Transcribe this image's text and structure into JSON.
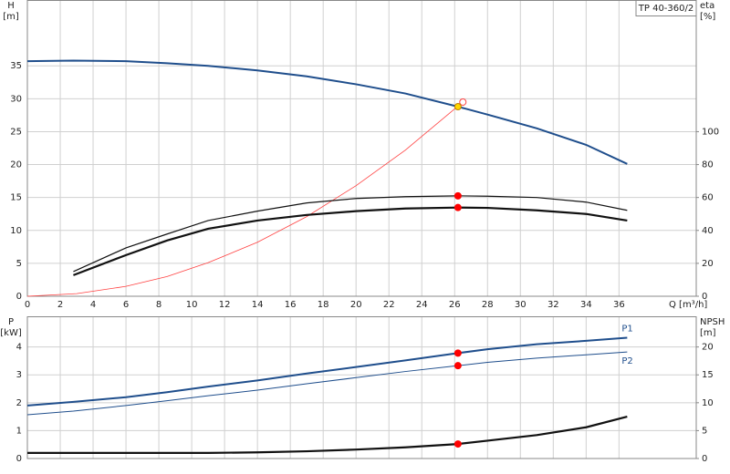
{
  "chart_data": [
    {
      "type": "line",
      "title": "TP 40-360/2",
      "ylabel": "H",
      "ylabel_unit": "[m]",
      "y2label": "eta",
      "y2label_unit": "[%]",
      "xlabel": "Q [m³/h]",
      "xlim": [
        0,
        40.7
      ],
      "xticks": [
        0,
        2,
        4,
        6,
        8,
        10,
        12,
        14,
        16,
        18,
        20,
        22,
        24,
        26,
        28,
        30,
        32,
        34,
        36
      ],
      "show_xtick_labels": true,
      "ylim": [
        0,
        45
      ],
      "yticks": [
        0,
        5,
        10,
        15,
        20,
        25,
        30,
        35
      ],
      "y2lim": [
        0,
        180
      ],
      "y2ticks": [
        0,
        20,
        40,
        60,
        80,
        100
      ],
      "grid": true,
      "series": [
        {
          "color": "#1f4e8c",
          "width": 2,
          "x": [
            0,
            2.8,
            6,
            8.5,
            11,
            14,
            17,
            20,
            23,
            26.2,
            28,
            31,
            34,
            36.5
          ],
          "values": [
            35.7,
            35.8,
            35.7,
            35.4,
            35,
            34.3,
            33.4,
            32.2,
            30.8,
            28.8,
            27.6,
            25.5,
            23,
            20.1
          ]
        },
        {
          "color": "#ff4040",
          "width": 0.8,
          "x": [
            0,
            3,
            6,
            8.5,
            11,
            14,
            17,
            20,
            23,
            26.5
          ],
          "values": [
            0,
            0.4,
            1.5,
            3,
            5.1,
            8.2,
            12.1,
            16.8,
            22.2,
            29.5
          ]
        },
        {
          "color": "#111111",
          "width": 1.2,
          "axis": "y2",
          "x": [
            2.8,
            6,
            8.5,
            11,
            14,
            17,
            20,
            23,
            26.2,
            28,
            31,
            34,
            36.5
          ],
          "values": [
            15,
            29.4,
            37.8,
            46,
            51.7,
            56.7,
            59.4,
            60.5,
            61,
            60.8,
            60,
            57.2,
            52.2
          ]
        },
        {
          "color": "#111111",
          "width": 2.2,
          "axis": "y2",
          "x": [
            2.8,
            6,
            8.5,
            11,
            14,
            17,
            20,
            23,
            26.2,
            28,
            31,
            34,
            36.5
          ],
          "values": [
            12.8,
            25,
            33.9,
            41,
            46,
            49.4,
            51.7,
            53.3,
            53.9,
            53.7,
            52.2,
            50,
            46
          ]
        }
      ],
      "markers": [
        {
          "x": 26.5,
          "y": 29.5,
          "color": "#ff4040",
          "hollow": true
        },
        {
          "x": 26.2,
          "y": 28.8,
          "color": "#ffd700"
        },
        {
          "x": 26.2,
          "y": 61,
          "axis": "y2",
          "color": "#ff0000"
        },
        {
          "x": 26.2,
          "y": 53.9,
          "axis": "y2",
          "color": "#ff0000"
        }
      ]
    },
    {
      "type": "line",
      "ylabel": "P",
      "ylabel_unit": "[kW]",
      "y2label": "NPSH",
      "y2label_unit": "[m]",
      "xlim": [
        0,
        40.7
      ],
      "xticks": [
        0,
        2,
        4,
        6,
        8,
        10,
        12,
        14,
        16,
        18,
        20,
        22,
        24,
        26,
        28,
        30,
        32,
        34,
        36
      ],
      "show_xtick_labels": false,
      "ylim": [
        0,
        5.1
      ],
      "yticks": [
        0,
        1,
        2,
        3,
        4
      ],
      "y2lim": [
        0,
        25.5
      ],
      "y2ticks": [
        0,
        5,
        10,
        15,
        20
      ],
      "grid": true,
      "series": [
        {
          "name": "P1",
          "color": "#1f4e8c",
          "width": 2,
          "x": [
            0,
            2.8,
            6,
            8.5,
            11,
            14,
            17,
            20,
            23,
            26.2,
            28,
            31,
            34,
            36.5
          ],
          "values": [
            1.9,
            2.03,
            2.2,
            2.38,
            2.58,
            2.8,
            3.05,
            3.28,
            3.52,
            3.78,
            3.92,
            4.1,
            4.22,
            4.33
          ]
        },
        {
          "name": "P2",
          "color": "#1f4e8c",
          "width": 1,
          "x": [
            0,
            2.8,
            6,
            8.5,
            11,
            14,
            17,
            20,
            23,
            26.2,
            28,
            31,
            34,
            36.5
          ],
          "values": [
            1.57,
            1.7,
            1.9,
            2.07,
            2.25,
            2.45,
            2.68,
            2.9,
            3.12,
            3.33,
            3.45,
            3.6,
            3.72,
            3.82
          ]
        },
        {
          "color": "#111111",
          "width": 2.2,
          "axis": "y2",
          "x": [
            0,
            6,
            11,
            14,
            17,
            20,
            23,
            26.2,
            28,
            31,
            34,
            36.5
          ],
          "values": [
            1,
            1,
            1,
            1.1,
            1.3,
            1.6,
            2,
            2.6,
            3.2,
            4.2,
            5.6,
            7.5
          ]
        }
      ],
      "markers": [
        {
          "x": 26.2,
          "y": 3.78,
          "color": "#ff0000"
        },
        {
          "x": 26.2,
          "y": 3.33,
          "color": "#ff0000"
        },
        {
          "x": 26.2,
          "y": 2.6,
          "axis": "y2",
          "color": "#ff0000"
        }
      ]
    }
  ]
}
